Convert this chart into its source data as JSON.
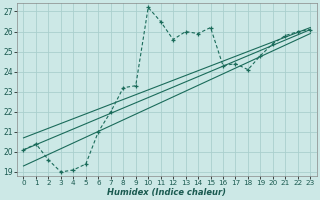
{
  "xlabel": "Humidex (Indice chaleur)",
  "background_color": "#cce8e6",
  "grid_color": "#aacfcd",
  "line_color": "#1a6b5a",
  "xlim": [
    -0.5,
    23.5
  ],
  "ylim": [
    18.8,
    27.4
  ],
  "xticks": [
    0,
    1,
    2,
    3,
    4,
    5,
    6,
    7,
    8,
    9,
    10,
    11,
    12,
    13,
    14,
    15,
    16,
    17,
    18,
    19,
    20,
    21,
    22,
    23
  ],
  "yticks": [
    19,
    20,
    21,
    22,
    23,
    24,
    25,
    26,
    27
  ],
  "series1_x": [
    0,
    1,
    2,
    3,
    4,
    5,
    6,
    7,
    8,
    9,
    10,
    11,
    12,
    13,
    14,
    15,
    16,
    17,
    18,
    19,
    20,
    21,
    22,
    23
  ],
  "series1_y": [
    20.1,
    20.4,
    19.6,
    19.0,
    19.1,
    19.4,
    21.0,
    22.0,
    23.2,
    23.3,
    27.2,
    26.5,
    25.6,
    26.0,
    25.9,
    26.2,
    24.3,
    24.4,
    24.1,
    24.8,
    25.4,
    25.8,
    26.0,
    26.1
  ],
  "line2_x": [
    0,
    23
  ],
  "line2_y": [
    19.3,
    25.9
  ],
  "line3_x": [
    0,
    23
  ],
  "line3_y": [
    20.1,
    26.1
  ],
  "line4_x": [
    0,
    23
  ],
  "line4_y": [
    20.7,
    26.2
  ]
}
